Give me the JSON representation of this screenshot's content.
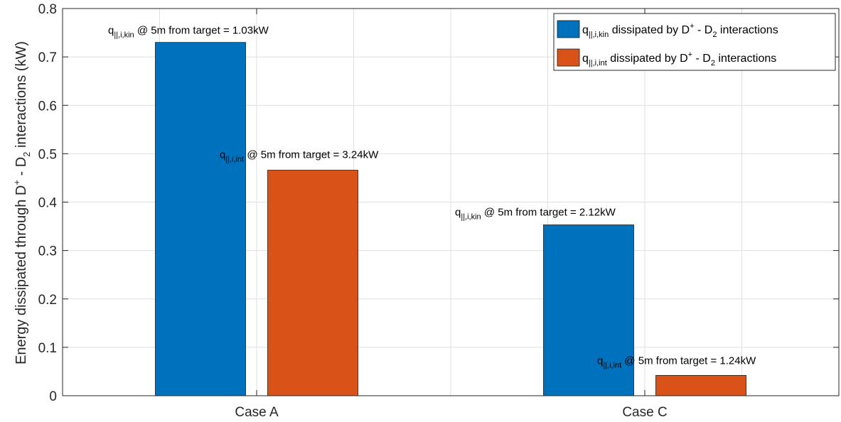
{
  "chart_data": {
    "type": "bar",
    "categories": [
      "Case A",
      "Case C"
    ],
    "series": [
      {
        "name_main": "q",
        "name_sub": "||,i,kin",
        "name_rest": " dissipated by D",
        "name_sup": "+",
        "name_rest2": " - D",
        "name_sub2": "2",
        "name_rest3": " interactions",
        "color": "#0072BD",
        "values": [
          0.73,
          0.353
        ]
      },
      {
        "name_main": "q",
        "name_sub": "||,i,int",
        "name_rest": " dissipated by D",
        "name_sup": "+",
        "name_rest2": " - D",
        "name_sub2": "2",
        "name_rest3": " interactions",
        "color": "#D95319",
        "values": [
          0.466,
          0.042
        ]
      }
    ],
    "annotations": [
      {
        "series": 0,
        "category": 0,
        "q": "q",
        "sub": "||,i,kin",
        "text": " @ 5m from target = 1.03kW"
      },
      {
        "series": 1,
        "category": 0,
        "q": "q",
        "sub": "||,i,int",
        "text": " @ 5m from target = 3.24kW"
      },
      {
        "series": 0,
        "category": 1,
        "q": "q",
        "sub": "||,i,kin",
        "text": " @ 5m from target = 2.12kW"
      },
      {
        "series": 1,
        "category": 1,
        "q": "q",
        "sub": "||,i,int",
        "text": " @ 5m from target = 1.24kW"
      }
    ],
    "ylabel": {
      "part1": "Energy dissipated through D",
      "sup": "+",
      "part2": " - D",
      "sub": "2",
      "part3": " interactions (kW)"
    },
    "ylim": [
      0,
      0.8
    ],
    "yticks": [
      "0",
      "0.1",
      "0.2",
      "0.3",
      "0.4",
      "0.5",
      "0.6",
      "0.7",
      "0.8"
    ],
    "ytick_values": [
      0,
      0.1,
      0.2,
      0.3,
      0.4,
      0.5,
      0.6,
      0.7,
      0.8
    ],
    "xgrid_fractions": [
      0,
      0.125,
      0.25,
      0.375,
      0.5,
      0.625,
      0.75,
      0.875,
      1
    ],
    "grid": true,
    "legend_position": "top-right"
  }
}
